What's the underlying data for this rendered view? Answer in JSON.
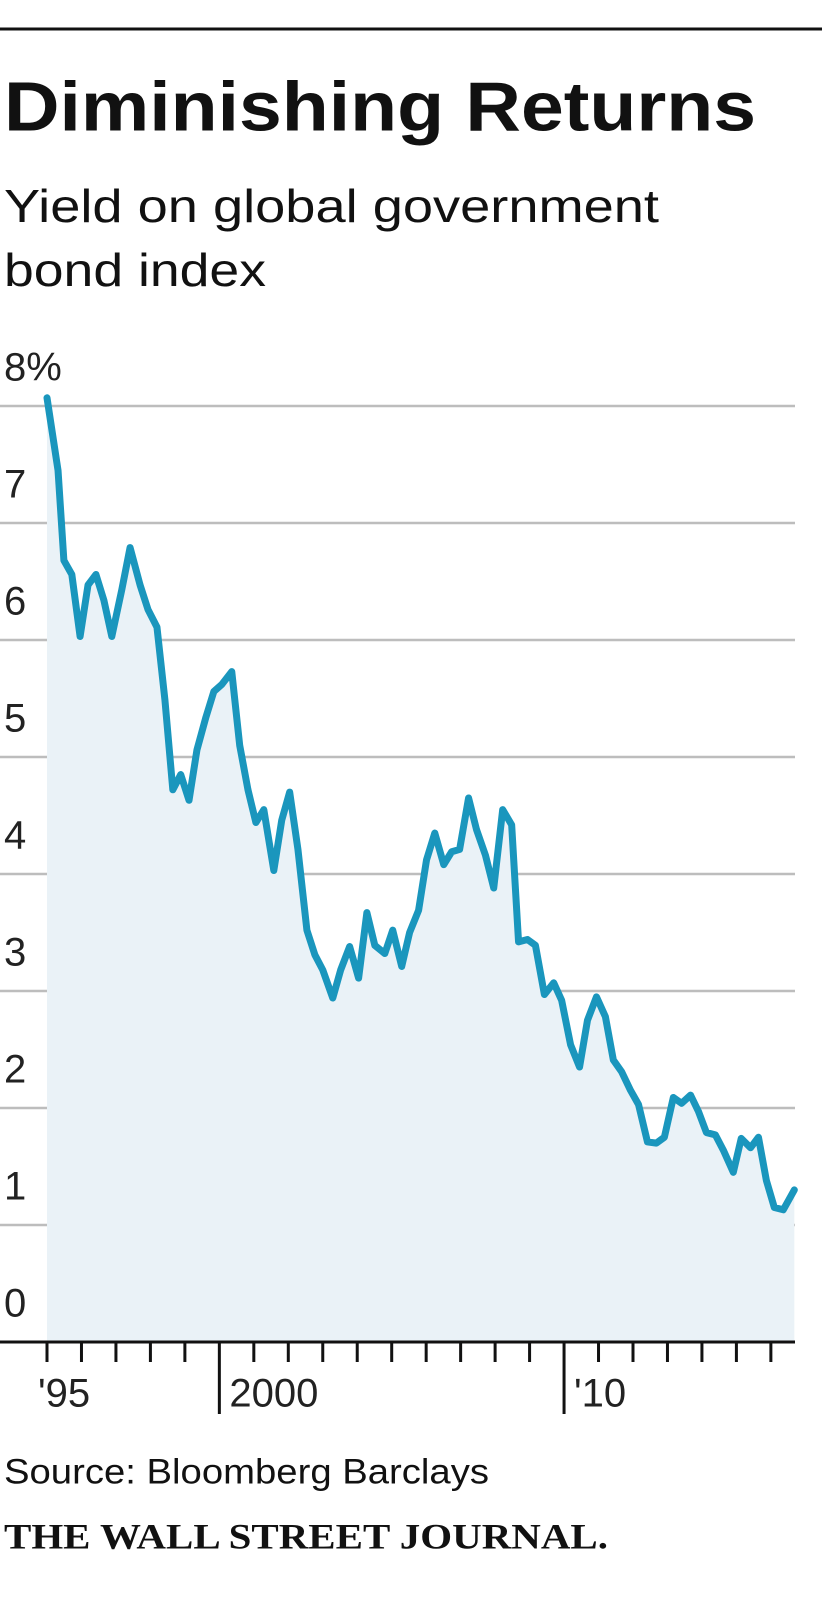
{
  "chart_data": {
    "type": "area-line",
    "title": "Diminishing Returns",
    "subtitle": [
      "Yield on global government",
      "bond index"
    ],
    "source": "Source: Bloomberg Barclays",
    "credit": "THE WALL STREET JOURNAL.",
    "color": "#1a96bd",
    "fill_color": "#eaf2f7",
    "grid": true,
    "xlim": [
      1995,
      2016.7
    ],
    "ylim": [
      0,
      8
    ],
    "yticks": [
      0,
      1,
      2,
      3,
      4,
      5,
      6,
      7,
      {
        "value": 8,
        "label": "8%"
      }
    ],
    "xticks": [
      {
        "value": 1995,
        "label": "'95"
      },
      2000,
      {
        "value": 2010,
        "label": "'10"
      }
    ],
    "xminorticks": [
      1996,
      1997,
      1998,
      1999,
      2001,
      2002,
      2003,
      2004,
      2005,
      2006,
      2007,
      2008,
      2009,
      2011,
      2012,
      2013,
      2014,
      2015,
      2016
    ],
    "x": [
      1995.0,
      1995.32,
      1995.49,
      1995.72,
      1995.96,
      1996.19,
      1996.42,
      1996.65,
      1996.88,
      1997.17,
      1997.41,
      1997.7,
      1997.93,
      1998.19,
      1998.42,
      1998.65,
      1998.88,
      1999.12,
      1999.35,
      1999.61,
      1999.84,
      2000.07,
      2000.36,
      2000.59,
      2000.83,
      2001.06,
      2001.29,
      2001.58,
      2001.81,
      2002.04,
      2002.28,
      2002.54,
      2002.77,
      2003.0,
      2003.29,
      2003.52,
      2003.78,
      2004.04,
      2004.28,
      2004.51,
      2004.8,
      2005.03,
      2005.29,
      2005.52,
      2005.78,
      2006.01,
      2006.25,
      2006.51,
      2006.74,
      2006.97,
      2007.23,
      2007.46,
      2007.72,
      2007.96,
      2008.22,
      2008.48,
      2008.68,
      2008.94,
      2009.17,
      2009.43,
      2009.7,
      2009.93,
      2010.19,
      2010.45,
      2010.68,
      2010.94,
      2011.2,
      2011.43,
      2011.67,
      2011.93,
      2012.16,
      2012.42,
      2012.68,
      2012.91,
      2013.17,
      2013.41,
      2013.67,
      2013.9,
      2014.13,
      2014.39,
      2014.62,
      2014.91,
      2015.14,
      2015.41,
      2015.64,
      2015.87,
      2016.1,
      2016.36,
      2016.68
    ],
    "values": [
      8.07,
      7.45,
      6.68,
      6.56,
      6.03,
      6.47,
      6.56,
      6.34,
      6.03,
      6.43,
      6.79,
      6.47,
      6.26,
      6.11,
      5.49,
      4.72,
      4.85,
      4.63,
      5.06,
      5.34,
      5.56,
      5.62,
      5.73,
      5.1,
      4.72,
      4.44,
      4.55,
      4.03,
      4.46,
      4.7,
      4.21,
      3.52,
      3.31,
      3.18,
      2.94,
      3.18,
      3.38,
      3.11,
      3.67,
      3.39,
      3.32,
      3.52,
      3.21,
      3.5,
      3.69,
      4.12,
      4.35,
      4.08,
      4.19,
      4.21,
      4.65,
      4.38,
      4.16,
      3.88,
      4.55,
      4.42,
      3.42,
      3.44,
      3.39,
      2.97,
      3.07,
      2.92,
      2.54,
      2.35,
      2.75,
      2.95,
      2.78,
      2.41,
      2.31,
      2.15,
      2.03,
      1.71,
      1.7,
      1.75,
      2.09,
      2.04,
      2.11,
      1.97,
      1.79,
      1.77,
      1.64,
      1.45,
      1.74,
      1.66,
      1.75,
      1.38,
      1.15,
      1.13,
      1.3
    ]
  }
}
